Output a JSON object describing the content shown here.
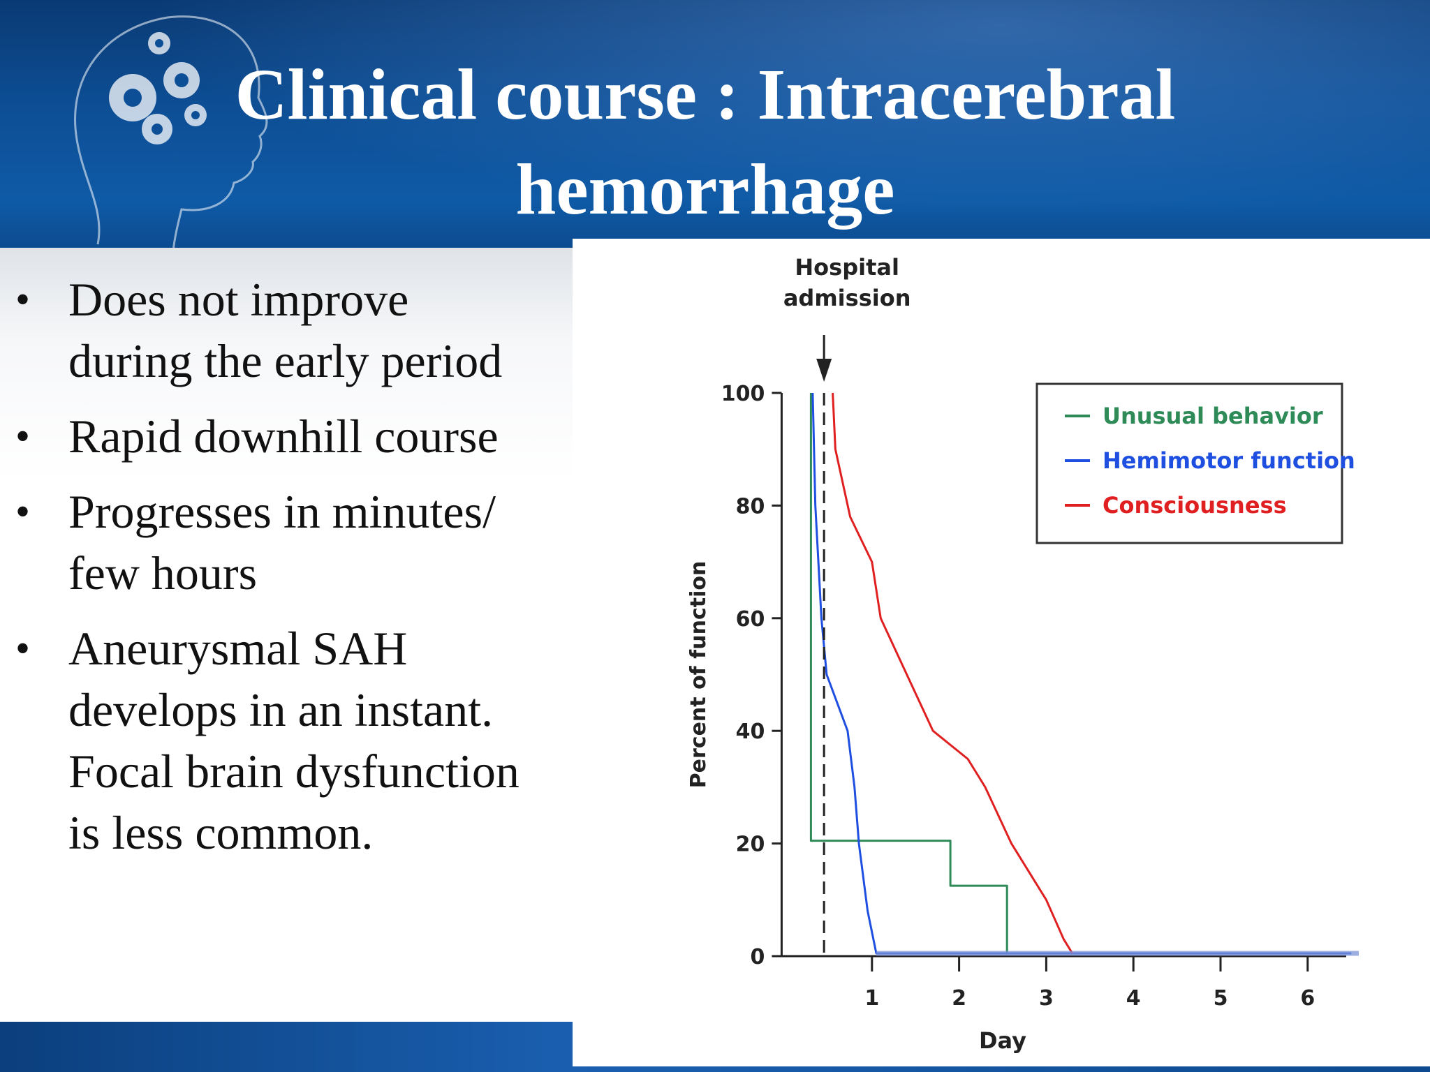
{
  "slide": {
    "title_line1": "Clinical course : Intracerebral",
    "title_line2": "hemorrhage",
    "bullets": [
      {
        "lines": [
          "Does not improve",
          "during the early period"
        ]
      },
      {
        "lines": [
          "Rapid downhill course"
        ]
      },
      {
        "lines": [
          "Progresses in minutes/",
          "few hours"
        ]
      },
      {
        "lines": [
          "Aneurysmal SAH",
          "develops in an instant.",
          "Focal brain dysfunction",
          "is less common."
        ]
      }
    ],
    "colors": {
      "header": "#0d4f96",
      "title_text": "#ffffff",
      "body_text": "#111111"
    },
    "icons": [
      "head-silhouette-icon",
      "gear-icon"
    ]
  },
  "chart_data": {
    "type": "line",
    "title": "",
    "xlabel": "Day",
    "ylabel": "Percent of function",
    "xlim": [
      0,
      6.5
    ],
    "ylim": [
      0,
      100
    ],
    "xticks": [
      1,
      2,
      3,
      4,
      5,
      6
    ],
    "yticks": [
      0,
      20,
      40,
      60,
      80,
      100
    ],
    "grid": false,
    "legend_position": "top-right",
    "annotation": {
      "lines": [
        "Hospital",
        "admission"
      ],
      "x": 0.45
    },
    "series": [
      {
        "name": "Unusual behavior",
        "color": "#2e8b57",
        "step": true,
        "points": [
          [
            0.3,
            100
          ],
          [
            0.3,
            20.5
          ],
          [
            1.9,
            20.5
          ],
          [
            1.9,
            12.5
          ],
          [
            2.55,
            12.5
          ],
          [
            2.55,
            0.5
          ],
          [
            6.5,
            0.5
          ]
        ]
      },
      {
        "name": "Hemimotor function",
        "color": "#1f4fe0",
        "step": false,
        "points": [
          [
            0.32,
            100
          ],
          [
            0.35,
            80
          ],
          [
            0.42,
            60
          ],
          [
            0.48,
            50
          ],
          [
            0.6,
            45
          ],
          [
            0.72,
            40
          ],
          [
            0.8,
            30
          ],
          [
            0.85,
            20
          ],
          [
            0.95,
            8
          ],
          [
            1.05,
            0.5
          ],
          [
            6.5,
            0.5
          ]
        ]
      },
      {
        "name": "Consciousness",
        "color": "#e02020",
        "step": false,
        "points": [
          [
            0.55,
            100
          ],
          [
            0.58,
            90
          ],
          [
            0.75,
            78
          ],
          [
            1.0,
            70
          ],
          [
            1.1,
            60
          ],
          [
            1.4,
            50
          ],
          [
            1.7,
            40
          ],
          [
            2.1,
            35
          ],
          [
            2.3,
            30
          ],
          [
            2.6,
            20
          ],
          [
            3.0,
            10
          ],
          [
            3.2,
            3
          ],
          [
            3.3,
            0.5
          ]
        ]
      }
    ]
  }
}
